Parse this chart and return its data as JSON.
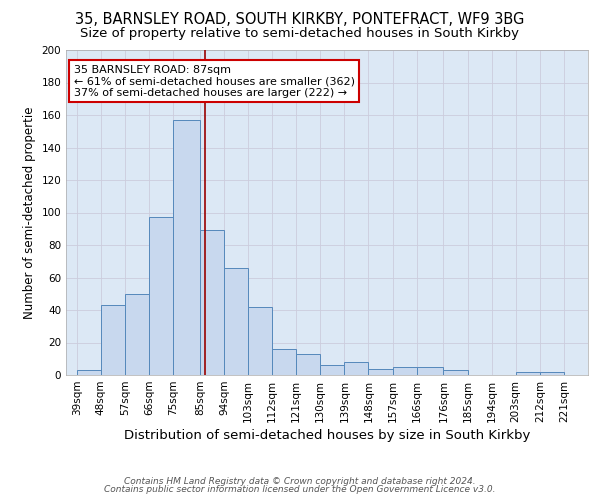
{
  "title1": "35, BARNSLEY ROAD, SOUTH KIRKBY, PONTEFRACT, WF9 3BG",
  "title2": "Size of property relative to semi-detached houses in South Kirkby",
  "xlabel": "Distribution of semi-detached houses by size in South Kirkby",
  "ylabel": "Number of semi-detached propertie",
  "footnote1": "Contains HM Land Registry data © Crown copyright and database right 2024.",
  "footnote2": "Contains public sector information licensed under the Open Government Licence v3.0.",
  "annotation_title": "35 BARNSLEY ROAD: 87sqm",
  "annotation_line1": "← 61% of semi-detached houses are smaller (362)",
  "annotation_line2": "37% of semi-detached houses are larger (222) →",
  "bar_left_edges": [
    39,
    48,
    57,
    66,
    75,
    85,
    94,
    103,
    112,
    121,
    130,
    139,
    148,
    157,
    166,
    176,
    185,
    194,
    203,
    212
  ],
  "bar_heights": [
    3,
    43,
    50,
    97,
    157,
    89,
    66,
    42,
    16,
    13,
    6,
    8,
    4,
    5,
    5,
    3,
    0,
    0,
    2,
    2
  ],
  "bar_widths": [
    9,
    9,
    9,
    9,
    10,
    9,
    9,
    9,
    9,
    9,
    9,
    9,
    9,
    9,
    10,
    9,
    9,
    9,
    9,
    9
  ],
  "tick_labels": [
    "39sqm",
    "48sqm",
    "57sqm",
    "66sqm",
    "75sqm",
    "85sqm",
    "94sqm",
    "103sqm",
    "112sqm",
    "121sqm",
    "130sqm",
    "139sqm",
    "148sqm",
    "157sqm",
    "166sqm",
    "176sqm",
    "185sqm",
    "194sqm",
    "203sqm",
    "212sqm",
    "221sqm"
  ],
  "tick_positions": [
    39,
    48,
    57,
    66,
    75,
    85,
    94,
    103,
    112,
    121,
    130,
    139,
    148,
    157,
    166,
    176,
    185,
    194,
    203,
    212,
    221
  ],
  "bar_color": "#c8d8ee",
  "bar_edge_color": "#5588bb",
  "vline_color": "#990000",
  "vline_x": 87,
  "ylim": [
    0,
    200
  ],
  "xlim": [
    35,
    230
  ],
  "yticks": [
    0,
    20,
    40,
    60,
    80,
    100,
    120,
    140,
    160,
    180,
    200
  ],
  "grid_color": "#ccccdd",
  "bg_color": "#dce8f5",
  "fig_bg_color": "#ffffff",
  "annotation_box_color": "#ffffff",
  "annotation_box_edge": "#cc0000",
  "title1_fontsize": 10.5,
  "title2_fontsize": 9.5,
  "xlabel_fontsize": 9.5,
  "ylabel_fontsize": 8.5,
  "tick_fontsize": 7.5,
  "annotation_fontsize": 8,
  "footnote_fontsize": 6.5
}
